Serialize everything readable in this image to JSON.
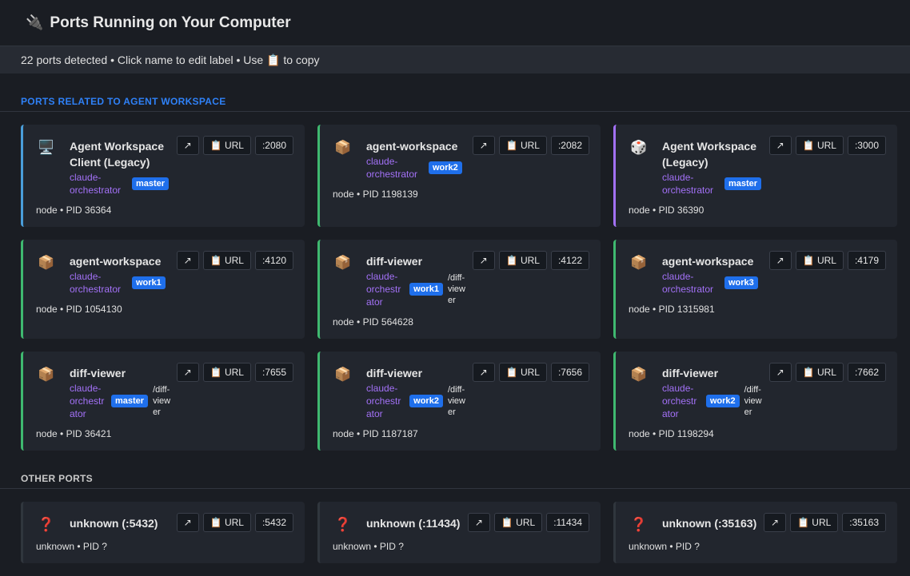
{
  "header": {
    "icon": "🔌",
    "title": "Ports Running on Your Computer"
  },
  "status": "22 ports detected • Click name to edit label • Use 📋 to copy",
  "sections": [
    {
      "title": "PORTS RELATED TO AGENT WORKSPACE",
      "style": "blue",
      "cards": [
        {
          "icon": "🖥️",
          "name": "Agent Workspace Client (Legacy)",
          "project": "claude-orchestrator",
          "branch": "master",
          "meta": "node • PID 36364",
          "open": "↗",
          "copy": "📋 URL",
          "port": ":2080",
          "accent": "#4a9eda"
        },
        {
          "icon": "📦",
          "name": "agent-workspace",
          "project": "claude-orchestrator",
          "branch": "work2",
          "meta": "node • PID 1198139",
          "open": "↗",
          "copy": "📋 URL",
          "port": ":2082",
          "accent": "#3fb970"
        },
        {
          "icon": "🎲",
          "name": "Agent Workspace (Legacy)",
          "project": "claude-orchestrator",
          "branch": "master",
          "meta": "node • PID 36390",
          "open": "↗",
          "copy": "📋 URL",
          "port": ":3000",
          "accent": "#a371f7"
        },
        {
          "icon": "📦",
          "name": "agent-workspace",
          "project": "claude-orchestrator",
          "branch": "work1",
          "meta": "node • PID 1054130",
          "open": "↗",
          "copy": "📋 URL",
          "port": ":4120",
          "accent": "#3fb970"
        },
        {
          "icon": "📦",
          "name": "diff-viewer",
          "project": "claude-orchestrator",
          "branch": "work1",
          "path": "/diff-viewer",
          "meta": "node • PID 564628",
          "open": "↗",
          "copy": "📋 URL",
          "port": ":4122",
          "accent": "#3fb970"
        },
        {
          "icon": "📦",
          "name": "agent-workspace",
          "project": "claude-orchestrator",
          "branch": "work3",
          "meta": "node • PID 1315981",
          "open": "↗",
          "copy": "📋 URL",
          "port": ":4179",
          "accent": "#3fb970"
        },
        {
          "icon": "📦",
          "name": "diff-viewer",
          "project": "claude-orchestrator",
          "branch": "master",
          "path": "/diff-viewer",
          "meta": "node • PID 36421",
          "open": "↗",
          "copy": "📋 URL",
          "port": ":7655",
          "accent": "#3fb970"
        },
        {
          "icon": "📦",
          "name": "diff-viewer",
          "project": "claude-orchestrator",
          "branch": "work2",
          "path": "/diff-viewer",
          "meta": "node • PID 1187187",
          "open": "↗",
          "copy": "📋 URL",
          "port": ":7656",
          "accent": "#3fb970"
        },
        {
          "icon": "📦",
          "name": "diff-viewer",
          "project": "claude-orchestrator",
          "branch": "work2",
          "path": "/diff-viewer",
          "meta": "node • PID 1198294",
          "open": "↗",
          "copy": "📋 URL",
          "port": ":7662",
          "accent": "#3fb970"
        }
      ]
    },
    {
      "title": "OTHER PORTS",
      "style": "grey",
      "cards": [
        {
          "icon": "❓",
          "name": "unknown (:5432)",
          "meta": "unknown • PID ?",
          "open": "↗",
          "copy": "📋 URL",
          "port": ":5432",
          "accent": "#30363d"
        },
        {
          "icon": "❓",
          "name": "unknown (:11434)",
          "meta": "unknown • PID ?",
          "open": "↗",
          "copy": "📋 URL",
          "port": ":11434",
          "accent": "#30363d"
        },
        {
          "icon": "❓",
          "name": "unknown (:35163)",
          "meta": "unknown • PID ?",
          "open": "↗",
          "copy": "📋 URL",
          "port": ":35163",
          "accent": "#30363d"
        }
      ]
    }
  ]
}
